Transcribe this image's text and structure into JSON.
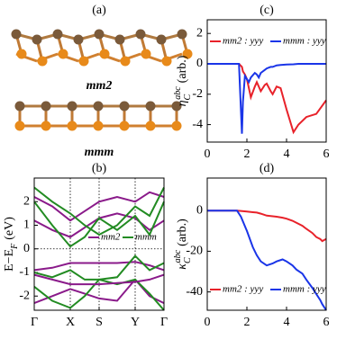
{
  "structure": {
    "label": "(a)",
    "names": [
      "mm2",
      "mmm"
    ]
  },
  "chart_data": [
    {
      "type": "line",
      "title": "(b)",
      "ylabel": {
        "main": "E−E",
        "sub": "F",
        "unit": "(eV)"
      },
      "x": [
        0,
        0.5,
        1,
        1.4,
        1.8,
        2.3,
        2.8,
        3.2,
        3.6
      ],
      "xlim": [
        0,
        3.6
      ],
      "ylim": [
        -2.6,
        3.0
      ],
      "xticks": [
        {
          "value": 0,
          "label": "Γ"
        },
        {
          "value": 1,
          "label": "X"
        },
        {
          "value": 1.8,
          "label": "S"
        },
        {
          "value": 2.8,
          "label": "Y"
        },
        {
          "value": 3.6,
          "label": "Γ"
        }
      ],
      "yticks": [
        -2,
        -1,
        0,
        1,
        2
      ],
      "xgrid": true,
      "hline": 0,
      "series": [
        {
          "name": "mm2",
          "color": "#8a1a8a",
          "values": [
            -2.3,
            -2.0,
            -1.7,
            -1.9,
            -2.1,
            -2.2,
            -1.3,
            -2.0,
            -2.3
          ]
        },
        {
          "name": "mmm",
          "color": "#228b22",
          "values": [
            -1.6,
            -2.2,
            -2.5,
            -2.0,
            -1.3,
            -1.5,
            -1.3,
            -1.9,
            -2.6
          ]
        },
        {
          "color": "#8a1a8a",
          "values": [
            -1.1,
            -1.3,
            -1.5,
            -1.5,
            -1.5,
            -1.45,
            -1.4,
            -1.3,
            -1.1
          ]
        },
        {
          "color": "#8a1a8a",
          "values": [
            -0.9,
            -0.8,
            -0.6,
            -0.6,
            -0.6,
            -0.6,
            -0.55,
            -0.7,
            -0.9
          ]
        },
        {
          "color": "#8a1a8a",
          "values": [
            2.2,
            1.8,
            1.2,
            1.6,
            2.0,
            2.2,
            2.0,
            2.4,
            2.2
          ]
        },
        {
          "color": "#8a1a8a",
          "values": [
            1.2,
            0.8,
            0.5,
            0.9,
            1.3,
            1.5,
            1.3,
            0.8,
            1.2
          ]
        },
        {
          "color": "#228b22",
          "values": [
            -1.0,
            -1.2,
            -0.9,
            -1.3,
            -1.3,
            -1.2,
            -0.3,
            -0.9,
            -0.6
          ]
        },
        {
          "color": "#228b22",
          "values": [
            2.0,
            1.0,
            0.1,
            0.5,
            1.3,
            0.8,
            1.4,
            0.6,
            2.0
          ]
        },
        {
          "color": "#228b22",
          "values": [
            2.6,
            2.0,
            1.5,
            1.0,
            0.6,
            1.0,
            1.8,
            1.4,
            2.6
          ]
        }
      ]
    },
    {
      "type": "line",
      "title": "(c)",
      "ylabel": {
        "main": "η",
        "sub": "C",
        "sup": "abc",
        "unit": "(arb.)"
      },
      "x": [
        0,
        1.6,
        1.75,
        1.8,
        1.9,
        2.0,
        2.1,
        2.2,
        2.4,
        2.5,
        2.6,
        2.7,
        2.9,
        3.0,
        3.2,
        3.3,
        3.5,
        3.7,
        4.0,
        4.35,
        4.6,
        5.0,
        5.5,
        6.0
      ],
      "xlim": [
        0,
        6
      ],
      "ylim": [
        -5.15,
        2.9
      ],
      "xticks": [
        0,
        2,
        4,
        6
      ],
      "yticks": [
        -4,
        -2,
        0,
        2
      ],
      "series": [
        {
          "name": "mm2 : yyy",
          "color": "#e8222a",
          "values": [
            0,
            0,
            -0.2,
            -0.5,
            -0.7,
            -1.0,
            -1.6,
            -2.2,
            -1.5,
            -1.2,
            -1.5,
            -1.8,
            -1.4,
            -1.3,
            -1.8,
            -2.0,
            -1.5,
            -1.6,
            -3.0,
            -4.5,
            -4.0,
            -3.5,
            -3.3,
            -2.4
          ]
        },
        {
          "name": "mmm : yyy",
          "color": "#1a35e8",
          "values": [
            0,
            0,
            -4.6,
            -2.5,
            -0.8,
            -1.0,
            -1.2,
            -0.9,
            -0.6,
            -0.7,
            -0.9,
            -0.6,
            -0.4,
            -0.3,
            -0.2,
            -0.2,
            -0.1,
            -0.08,
            -0.05,
            -0.03,
            0,
            0,
            0,
            0
          ]
        }
      ]
    },
    {
      "type": "line",
      "title": "(d)",
      "ylabel": {
        "main": "κ",
        "sub": "C",
        "sup": "abc",
        "unit": "(arb.)"
      },
      "x": [
        0,
        1.5,
        1.7,
        2.0,
        2.3,
        2.5,
        2.7,
        3.0,
        3.3,
        3.5,
        3.8,
        4.0,
        4.3,
        4.5,
        4.8,
        5.0,
        5.3,
        5.5,
        5.7,
        5.8,
        6.0
      ],
      "xlim": [
        0,
        6
      ],
      "ylim": [
        -49,
        16
      ],
      "xticks": [
        0,
        2,
        4,
        6
      ],
      "yticks": [
        -40,
        -20,
        0
      ],
      "series": [
        {
          "name": "mm2 : yyy",
          "color": "#e8222a",
          "values": [
            0,
            0,
            -0.2,
            -0.5,
            -0.8,
            -1,
            -1.5,
            -2.5,
            -2.8,
            -3,
            -3.5,
            -4,
            -5,
            -6,
            -7.5,
            -9,
            -11,
            -13,
            -14,
            -15,
            -14
          ]
        },
        {
          "name": "mmm : yyy",
          "color": "#1a35e8",
          "values": [
            0,
            0,
            -3,
            -10,
            -18,
            -22,
            -25,
            -27,
            -26,
            -25,
            -24,
            -25,
            -27,
            -29,
            -31,
            -34,
            -38,
            -41,
            -44,
            -46,
            -49
          ]
        }
      ]
    }
  ]
}
